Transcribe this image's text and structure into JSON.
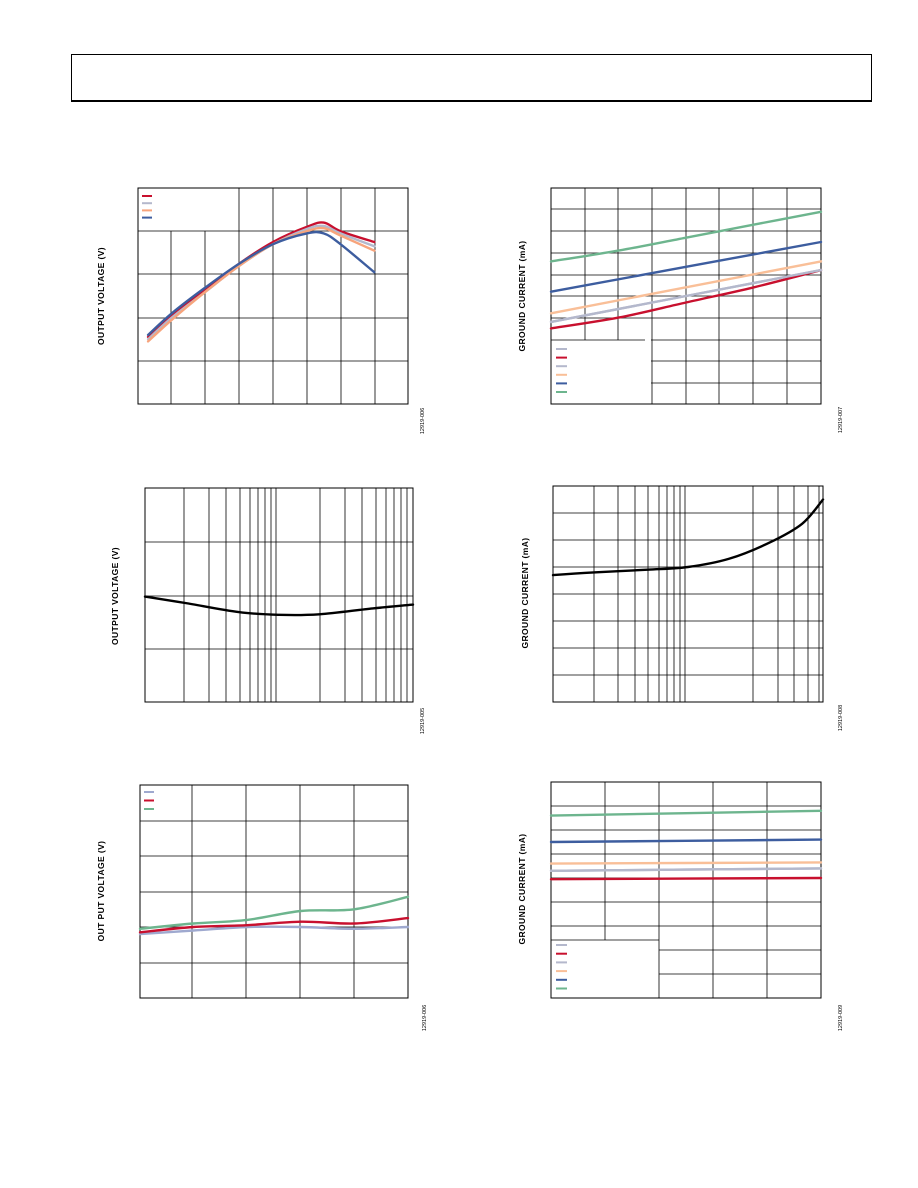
{
  "page": {
    "header": ""
  },
  "figures": [
    {
      "ylabel": "OUTPUT VOLTAGE (V)",
      "fig_id": "12919-006"
    },
    {
      "ylabel": "GROUND CURRENT (mA)",
      "fig_id": "12919-007"
    },
    {
      "ylabel": "OUTPUT VOLTAGE (V)",
      "fig_id": "12919-005"
    },
    {
      "ylabel": "GROUND CURRENT (mA)",
      "fig_id": "12919-008"
    },
    {
      "ylabel": "OUT PUT VOLTAGE (V)",
      "fig_id": "12919-006"
    },
    {
      "ylabel": "GROUND CURRENT (mA)",
      "fig_id": "12919-009"
    }
  ],
  "chart_data": [
    {
      "type": "line",
      "title": "",
      "xlabel": "",
      "ylabel": "OUTPUT VOLTAGE (V)",
      "xlim": [
        0,
        8
      ],
      "ylim": [
        0,
        5
      ],
      "grid": true,
      "legend": "top-left",
      "series": [
        {
          "name": "",
          "color": "#c8102e",
          "x": [
            0.3,
            1,
            2,
            3,
            4,
            5,
            5.5,
            6,
            7
          ],
          "y": [
            1.55,
            2.05,
            2.65,
            3.25,
            3.75,
            4.1,
            4.2,
            4.0,
            3.75
          ]
        },
        {
          "name": "",
          "color": "#b4b8cc",
          "x": [
            0.3,
            1,
            2,
            3,
            4,
            5,
            5.5,
            6,
            7
          ],
          "y": [
            1.5,
            2.0,
            2.6,
            3.2,
            3.7,
            4.05,
            4.12,
            3.95,
            3.65
          ]
        },
        {
          "name": "",
          "color": "#f7a47c",
          "x": [
            0.3,
            1,
            2,
            3,
            4,
            5,
            5.5,
            6,
            7
          ],
          "y": [
            1.45,
            1.95,
            2.6,
            3.2,
            3.7,
            4.0,
            4.07,
            3.9,
            3.55
          ]
        },
        {
          "name": "",
          "color": "#3d5d9f",
          "x": [
            0.3,
            1,
            2,
            3,
            4,
            5,
            5.5,
            6,
            7
          ],
          "y": [
            1.6,
            2.1,
            2.7,
            3.25,
            3.7,
            3.95,
            3.95,
            3.7,
            3.05
          ]
        }
      ]
    },
    {
      "type": "line",
      "title": "",
      "xlabel": "",
      "ylabel": "GROUND CURRENT (mA)",
      "xlim": [
        0,
        8
      ],
      "ylim": [
        0,
        10
      ],
      "grid": true,
      "legend": "bottom-left",
      "series": [
        {
          "name": "",
          "color": "#b4b8cc",
          "x": [
            0,
            8
          ],
          "y": [
            3.8,
            6.2
          ]
        },
        {
          "name": "",
          "color": "#c8102e",
          "x": [
            0,
            2,
            4,
            6,
            8
          ],
          "y": [
            3.5,
            4.0,
            4.7,
            5.4,
            6.2
          ]
        },
        {
          "name": "",
          "color": "#b4b8cc",
          "x": [
            0,
            8
          ],
          "y": [
            3.8,
            6.2
          ]
        },
        {
          "name": "",
          "color": "#f9bf98",
          "x": [
            0,
            8
          ],
          "y": [
            4.2,
            6.6
          ]
        },
        {
          "name": "",
          "color": "#3d5d9f",
          "x": [
            0,
            8
          ],
          "y": [
            5.2,
            7.5
          ]
        },
        {
          "name": "",
          "color": "#6db58e",
          "x": [
            0,
            2,
            4,
            6,
            8
          ],
          "y": [
            6.6,
            7.1,
            7.7,
            8.3,
            8.9
          ]
        }
      ]
    },
    {
      "type": "line",
      "xscale": "log",
      "title": "",
      "xlabel": "",
      "ylabel": "OUTPUT VOLTAGE (V)",
      "xlim": [
        1,
        100
      ],
      "ylim": [
        0,
        4
      ],
      "grid": true,
      "legend": "none",
      "series": [
        {
          "name": "",
          "color": "#000000",
          "x": [
            1,
            2,
            5,
            10,
            20,
            50,
            100
          ],
          "y": [
            1.97,
            1.85,
            1.68,
            1.63,
            1.64,
            1.75,
            1.82
          ]
        }
      ]
    },
    {
      "type": "line",
      "xscale": "log",
      "title": "",
      "xlabel": "",
      "ylabel": "GROUND CURRENT (mA)",
      "xlim": [
        1,
        100
      ],
      "ylim": [
        0,
        8
      ],
      "grid": true,
      "legend": "none",
      "series": [
        {
          "name": "",
          "color": "#000000",
          "x": [
            1,
            2,
            5,
            10,
            20,
            40,
            70,
            100
          ],
          "y": [
            4.7,
            4.8,
            4.9,
            5.0,
            5.3,
            5.9,
            6.6,
            7.5
          ]
        }
      ]
    },
    {
      "type": "line",
      "title": "",
      "xlabel": "",
      "ylabel": "OUT PUT VOLTAGE (V)",
      "xlim": [
        0,
        5
      ],
      "ylim": [
        0,
        6
      ],
      "grid": true,
      "legend": "top-left",
      "series": [
        {
          "name": "",
          "color": "#9fa9cf",
          "x": [
            0,
            1,
            2,
            3,
            4,
            5
          ],
          "y": [
            1.8,
            1.9,
            2.0,
            2.0,
            1.95,
            2.0
          ]
        },
        {
          "name": "",
          "color": "#c8102e",
          "x": [
            0,
            1,
            2,
            3,
            4,
            5
          ],
          "y": [
            1.85,
            2.0,
            2.05,
            2.15,
            2.1,
            2.25
          ]
        },
        {
          "name": "",
          "color": "#6db58e",
          "x": [
            0,
            1,
            2,
            3,
            4,
            5
          ],
          "y": [
            1.95,
            2.1,
            2.2,
            2.45,
            2.5,
            2.85
          ]
        }
      ]
    },
    {
      "type": "line",
      "title": "",
      "xlabel": "",
      "ylabel": "GROUND CURRENT (mA)",
      "xlim": [
        0,
        5
      ],
      "ylim": [
        0,
        9
      ],
      "grid": true,
      "legend": "bottom-left",
      "series": [
        {
          "name": "",
          "color": "#b4b8cc",
          "x": [
            0,
            5
          ],
          "y": [
            5.3,
            5.4
          ]
        },
        {
          "name": "",
          "color": "#c8102e",
          "x": [
            0,
            5
          ],
          "y": [
            4.95,
            5.0
          ]
        },
        {
          "name": "",
          "color": "#b4b8cc",
          "x": [
            0,
            5
          ],
          "y": [
            5.3,
            5.4
          ]
        },
        {
          "name": "",
          "color": "#f9bf98",
          "x": [
            0,
            5
          ],
          "y": [
            5.6,
            5.65
          ]
        },
        {
          "name": "",
          "color": "#3d5d9f",
          "x": [
            0,
            5
          ],
          "y": [
            6.5,
            6.6
          ]
        },
        {
          "name": "",
          "color": "#6db58e",
          "x": [
            0,
            5
          ],
          "y": [
            7.6,
            7.8
          ]
        }
      ]
    }
  ]
}
